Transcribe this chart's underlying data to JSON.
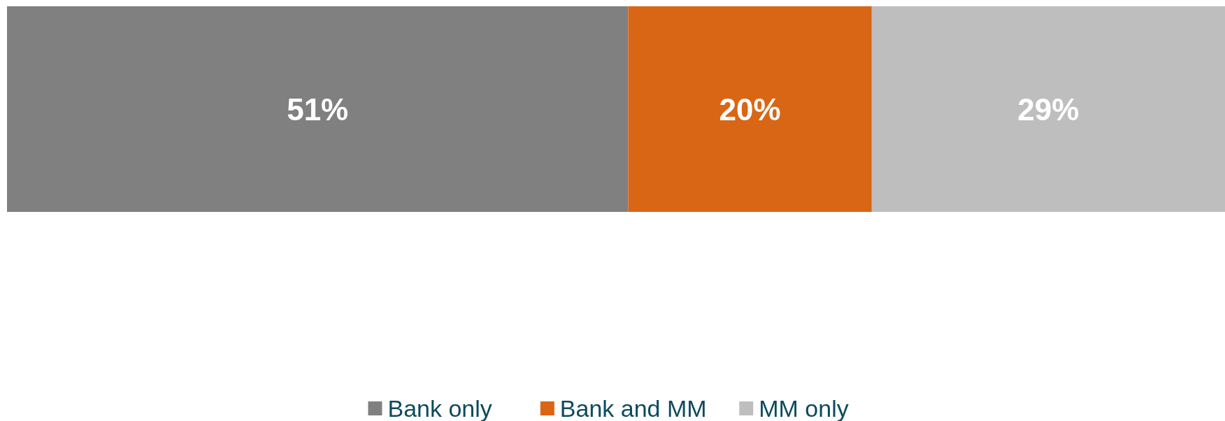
{
  "chart_data": {
    "type": "bar",
    "orientation": "horizontal",
    "stacked": true,
    "categories": [
      null
    ],
    "xlim": [
      0,
      100
    ],
    "legend": "bottom",
    "series": [
      {
        "name": "Bank only",
        "color": "#808080",
        "values": [
          51
        ],
        "value_labels": [
          "51%"
        ]
      },
      {
        "name": "Bank and MM",
        "color": "#d96614",
        "values": [
          20
        ],
        "value_labels": [
          "20%"
        ]
      },
      {
        "name": "MM only",
        "color": "#bebebe",
        "values": [
          29
        ],
        "value_labels": [
          "29%"
        ]
      }
    ]
  }
}
